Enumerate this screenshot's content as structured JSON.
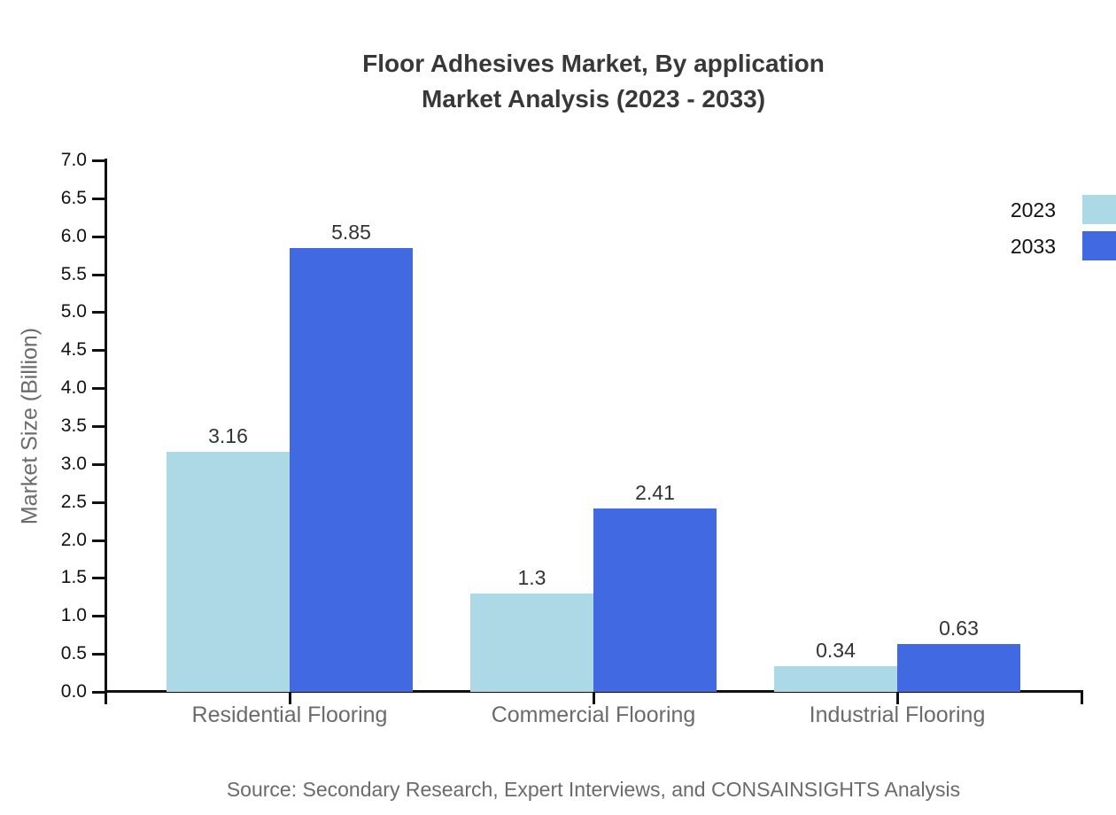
{
  "title": {
    "line1": "Floor Adhesives Market, By application",
    "line2": "Market Analysis (2023 - 2033)"
  },
  "source": "Source: Secondary Research, Expert Interviews, and CONSAINSIGHTS Analysis",
  "chart_data": {
    "type": "bar",
    "categories": [
      "Residential Flooring",
      "Commercial Flooring",
      "Industrial Flooring"
    ],
    "series": [
      {
        "name": "2023",
        "color": "#ADD8E6",
        "values": [
          3.16,
          1.3,
          0.34
        ]
      },
      {
        "name": "2033",
        "color": "#4169E1",
        "values": [
          5.85,
          2.41,
          0.63
        ]
      }
    ],
    "xlabel": "",
    "ylabel": "Market Size (Billion)",
    "ylim": [
      0,
      7
    ],
    "ytick_step": 0.5,
    "ytick_format_decimals": 1,
    "grid": false,
    "legend_position": "top-right",
    "value_labels_shown": true,
    "axis_color": "#111111",
    "text_color_labels": "#6b6b6b",
    "text_color_values": "#333333"
  }
}
